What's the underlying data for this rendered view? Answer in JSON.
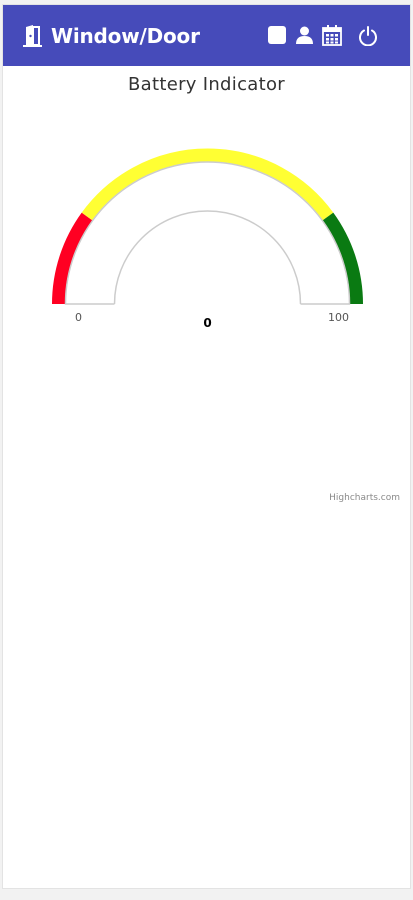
{
  "app": {
    "title": "Window/Door"
  },
  "colors": {
    "header_bg": "#464bba",
    "band_low": "#ff0022",
    "band_mid": "#ffff33",
    "band_high": "#0a7a12",
    "pane_border": "#cccccc"
  },
  "header": {
    "icons": [
      "door-icon",
      "square-icon",
      "user-icon",
      "calendar-icon",
      "power-icon"
    ]
  },
  "chart_data": {
    "type": "gauge",
    "title": "Battery Indicator",
    "min": 0,
    "max": 100,
    "value": 0,
    "min_label": "0",
    "max_label": "100",
    "value_label": "0",
    "bands": [
      {
        "from": 0,
        "to": 20,
        "color": "#ff0022"
      },
      {
        "from": 20,
        "to": 80,
        "color": "#ffff33"
      },
      {
        "from": 80,
        "to": 100,
        "color": "#0a7a12"
      }
    ],
    "credits": "Highcharts.com"
  }
}
